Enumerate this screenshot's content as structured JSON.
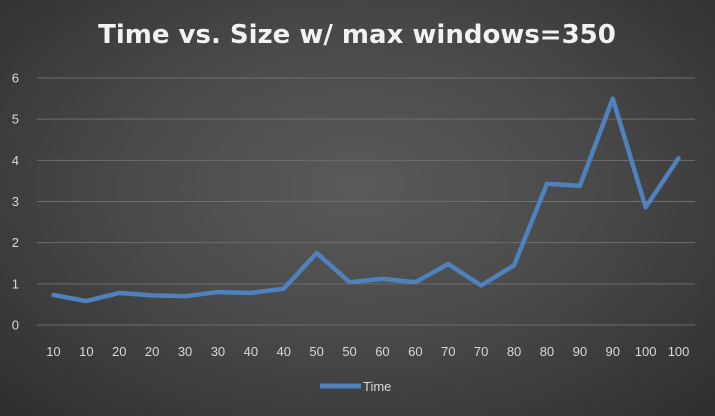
{
  "chart_data": {
    "type": "line",
    "title": "Time vs. Size w/ max windows=350",
    "xlabel": "",
    "ylabel": "",
    "categories": [
      "10",
      "10",
      "20",
      "20",
      "30",
      "30",
      "40",
      "40",
      "50",
      "50",
      "60",
      "60",
      "70",
      "70",
      "80",
      "80",
      "90",
      "90",
      "100",
      "100"
    ],
    "series": [
      {
        "name": "Time",
        "values": [
          0.73,
          0.58,
          0.78,
          0.72,
          0.7,
          0.8,
          0.78,
          0.88,
          1.75,
          1.04,
          1.12,
          1.04,
          1.48,
          0.96,
          1.45,
          3.43,
          3.38,
          5.5,
          2.86,
          4.05
        ]
      }
    ],
    "ylim": [
      0,
      6
    ],
    "yticks": [
      "0",
      "1",
      "2",
      "3",
      "4",
      "5",
      "6"
    ],
    "grid": true,
    "legend": "bottom",
    "colors": {
      "series": "#4f81bd",
      "background": "#4a4a4a",
      "grid": "#6d6d6d",
      "text": "#d9d9d9"
    }
  }
}
